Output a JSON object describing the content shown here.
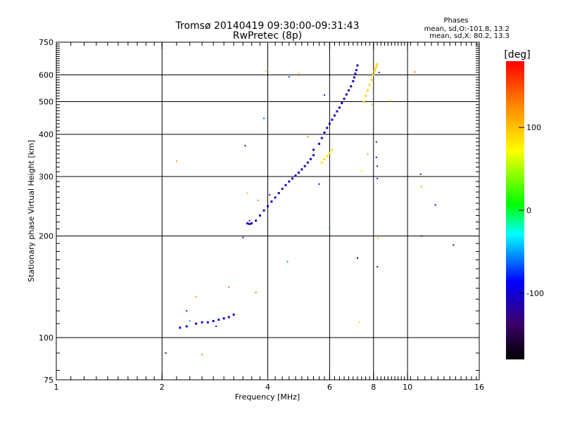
{
  "chart_data": {
    "type": "scatter",
    "title": "Tromsø 20140419 09:30:00-09:31:43",
    "subtitle": "RwPretec (8p)",
    "xlabel": "Frequency [MHz]",
    "ylabel": "Stationary phase Virtual Height [km]",
    "xscale": "log",
    "yscale": "log",
    "xlim": [
      1,
      16
    ],
    "ylim": [
      75,
      750
    ],
    "x_major_ticks": [
      1,
      2,
      4,
      6,
      8,
      10,
      16
    ],
    "x_tick_labels": [
      "1",
      "2",
      "4",
      "6",
      "8",
      "10",
      "16"
    ],
    "x_gridlines": [
      2,
      4,
      6,
      8,
      10
    ],
    "y_major_ticks": [
      75,
      100,
      200,
      300,
      400,
      500,
      600,
      750
    ],
    "y_tick_labels": [
      "75",
      "100",
      "200",
      "300",
      "400",
      "500",
      "600",
      "750"
    ],
    "y_gridlines": [
      100,
      200,
      300,
      400,
      500,
      600
    ],
    "grid": true,
    "phases_box": {
      "title": "Phases",
      "line1": "mean, sd,O:-101.8, 13.2",
      "line2": "mean, sd,X: 80.2, 13.3"
    },
    "colorbar": {
      "label": "[deg]",
      "range": [
        -180,
        180
      ],
      "ticks": [
        100,
        0,
        -100
      ],
      "tick_labels": [
        "100",
        "0",
        "-100"
      ]
    },
    "traces": [
      {
        "x": [
          3.5,
          3.55,
          3.6,
          3.7,
          3.8,
          3.9,
          4.0,
          4.1,
          4.2,
          4.3,
          4.4,
          4.5,
          4.6,
          4.7,
          4.8,
          4.9,
          5.0,
          5.1,
          5.2,
          5.3,
          5.4
        ],
        "y": [
          218,
          217,
          218,
          222,
          230,
          238,
          245,
          253,
          260,
          268,
          276,
          283,
          290,
          296,
          302,
          308,
          315,
          322,
          330,
          338,
          347
        ],
        "phase": -110
      },
      {
        "x": [
          5.4,
          5.6,
          5.7,
          5.8,
          5.9,
          6.0,
          6.1,
          6.2,
          6.3,
          6.4,
          6.5,
          6.6,
          6.7,
          6.8,
          6.9,
          7.0,
          7.05,
          7.1,
          7.15,
          7.2
        ],
        "y": [
          360,
          375,
          390,
          405,
          418,
          430,
          442,
          455,
          468,
          480,
          495,
          510,
          525,
          540,
          555,
          575,
          590,
          605,
          620,
          640
        ],
        "phase": -110
      },
      {
        "x": [
          7.5,
          7.6,
          7.7,
          7.8,
          7.9,
          8.0,
          8.05,
          8.1,
          8.15,
          8.2
        ],
        "y": [
          500,
          520,
          540,
          560,
          580,
          600,
          615,
          625,
          635,
          645
        ],
        "phase": 90
      },
      {
        "x": [
          2.25,
          2.35,
          2.5,
          2.6,
          2.7,
          2.8,
          2.9,
          3.0,
          3.1,
          3.2
        ],
        "y": [
          107,
          108,
          110,
          111,
          111,
          112,
          113,
          114,
          115,
          117
        ],
        "phase": -100
      },
      {
        "x": [
          5.7,
          5.8,
          5.9,
          6.0,
          6.1
        ],
        "y": [
          330,
          338,
          345,
          352,
          360
        ],
        "phase": 85
      }
    ],
    "scatter_points": [
      {
        "x": 2.05,
        "y": 90,
        "phase": -120
      },
      {
        "x": 2.2,
        "y": 333,
        "phase": 120
      },
      {
        "x": 2.35,
        "y": 120,
        "phase": -80
      },
      {
        "x": 2.4,
        "y": 112,
        "phase": -50
      },
      {
        "x": 2.5,
        "y": 132,
        "phase": 110
      },
      {
        "x": 2.6,
        "y": 89,
        "phase": 130
      },
      {
        "x": 2.85,
        "y": 108,
        "phase": -90
      },
      {
        "x": 3.1,
        "y": 141,
        "phase": 140
      },
      {
        "x": 3.4,
        "y": 198,
        "phase": -130
      },
      {
        "x": 3.45,
        "y": 370,
        "phase": -120
      },
      {
        "x": 3.5,
        "y": 268,
        "phase": 110
      },
      {
        "x": 3.55,
        "y": 222,
        "phase": -90
      },
      {
        "x": 3.7,
        "y": 136,
        "phase": 140
      },
      {
        "x": 3.75,
        "y": 255,
        "phase": 130
      },
      {
        "x": 3.9,
        "y": 446,
        "phase": -60
      },
      {
        "x": 3.95,
        "y": 615,
        "phase": 90
      },
      {
        "x": 4.05,
        "y": 265,
        "phase": -130
      },
      {
        "x": 4.55,
        "y": 168,
        "phase": -50
      },
      {
        "x": 4.6,
        "y": 592,
        "phase": -70
      },
      {
        "x": 4.9,
        "y": 606,
        "phase": 110
      },
      {
        "x": 5.2,
        "y": 393,
        "phase": 130
      },
      {
        "x": 5.6,
        "y": 285,
        "phase": -100
      },
      {
        "x": 5.8,
        "y": 523,
        "phase": -110
      },
      {
        "x": 6.0,
        "y": 212,
        "phase": -60
      },
      {
        "x": 7.2,
        "y": 172,
        "phase": -160
      },
      {
        "x": 7.3,
        "y": 111,
        "phase": 90
      },
      {
        "x": 7.4,
        "y": 312,
        "phase": 85
      },
      {
        "x": 7.7,
        "y": 349,
        "phase": 120
      },
      {
        "x": 7.9,
        "y": 490,
        "phase": 90
      },
      {
        "x": 8.15,
        "y": 380,
        "phase": -120
      },
      {
        "x": 8.15,
        "y": 342,
        "phase": -110
      },
      {
        "x": 8.2,
        "y": 322,
        "phase": -110
      },
      {
        "x": 8.2,
        "y": 296,
        "phase": -100
      },
      {
        "x": 8.2,
        "y": 162,
        "phase": -140
      },
      {
        "x": 8.25,
        "y": 197,
        "phase": 100
      },
      {
        "x": 8.3,
        "y": 610,
        "phase": -110
      },
      {
        "x": 8.9,
        "y": 503,
        "phase": 90
      },
      {
        "x": 10.5,
        "y": 612,
        "phase": 130
      },
      {
        "x": 10.9,
        "y": 305,
        "phase": -140
      },
      {
        "x": 10.95,
        "y": 280,
        "phase": 120
      },
      {
        "x": 10.95,
        "y": 200,
        "phase": -130
      },
      {
        "x": 12.0,
        "y": 247,
        "phase": -100
      },
      {
        "x": 13.5,
        "y": 188,
        "phase": -100
      }
    ]
  }
}
